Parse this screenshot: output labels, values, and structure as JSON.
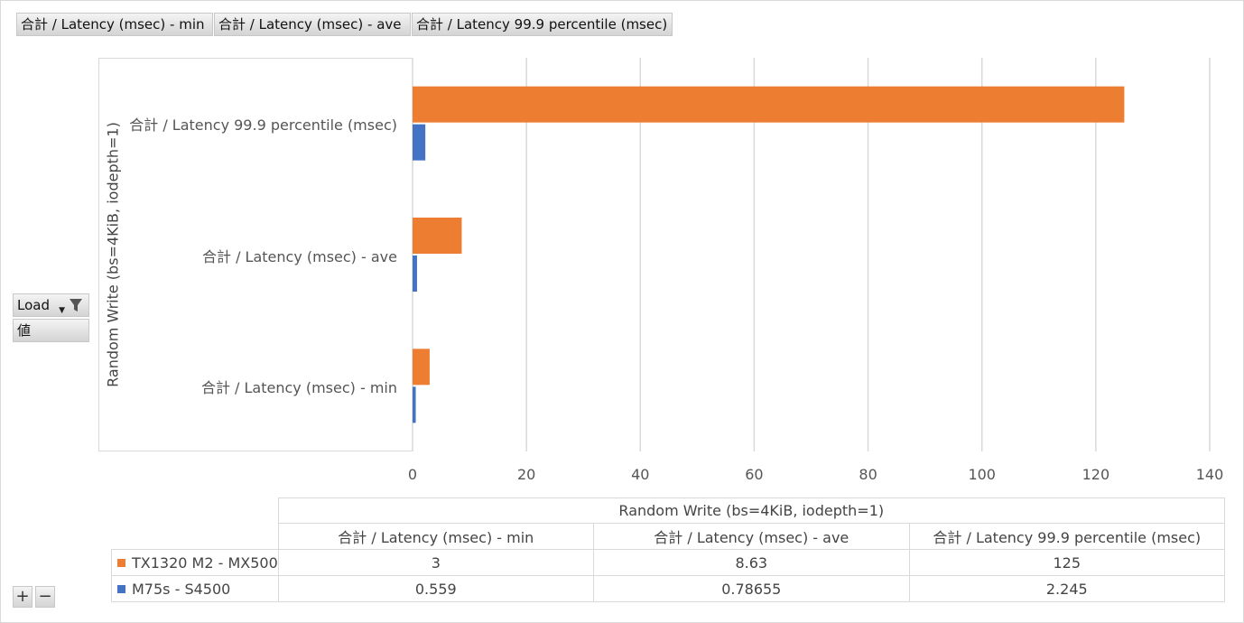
{
  "field_buttons": [
    "合計 / Latency (msec) - min",
    "合計 / Latency (msec) - ave",
    "合計 / Latency 99.9 percentile (msec)"
  ],
  "row_fields": {
    "load": "Load",
    "value": "値"
  },
  "zoom": {
    "plus": "+",
    "minus": "−"
  },
  "colors": {
    "tx1320": "#ED7D31",
    "m75s": "#4472C4",
    "grid": "#d9d9d9"
  },
  "chart_data": {
    "type": "bar",
    "orientation": "horizontal",
    "axis_title": "Random Write (bs=4KiB, iodepth=1)",
    "categories": [
      "合計 / Latency (msec) - min",
      "合計 / Latency (msec) - ave",
      "合計 / Latency 99.9 percentile (msec)"
    ],
    "xlim": [
      0,
      140
    ],
    "x_ticks": [
      0,
      20,
      40,
      60,
      80,
      100,
      120,
      140
    ],
    "grid": true,
    "series": [
      {
        "name": "TX1320 M2 - MX500",
        "color": "#ED7D31",
        "values": [
          3,
          8.63,
          125
        ],
        "display": [
          "3",
          "8.63",
          "125"
        ]
      },
      {
        "name": "M75s - S4500",
        "color": "#4472C4",
        "values": [
          0.559,
          0.78655,
          2.245
        ],
        "display": [
          "0.559",
          "0.78655",
          "2.245"
        ]
      }
    ]
  }
}
